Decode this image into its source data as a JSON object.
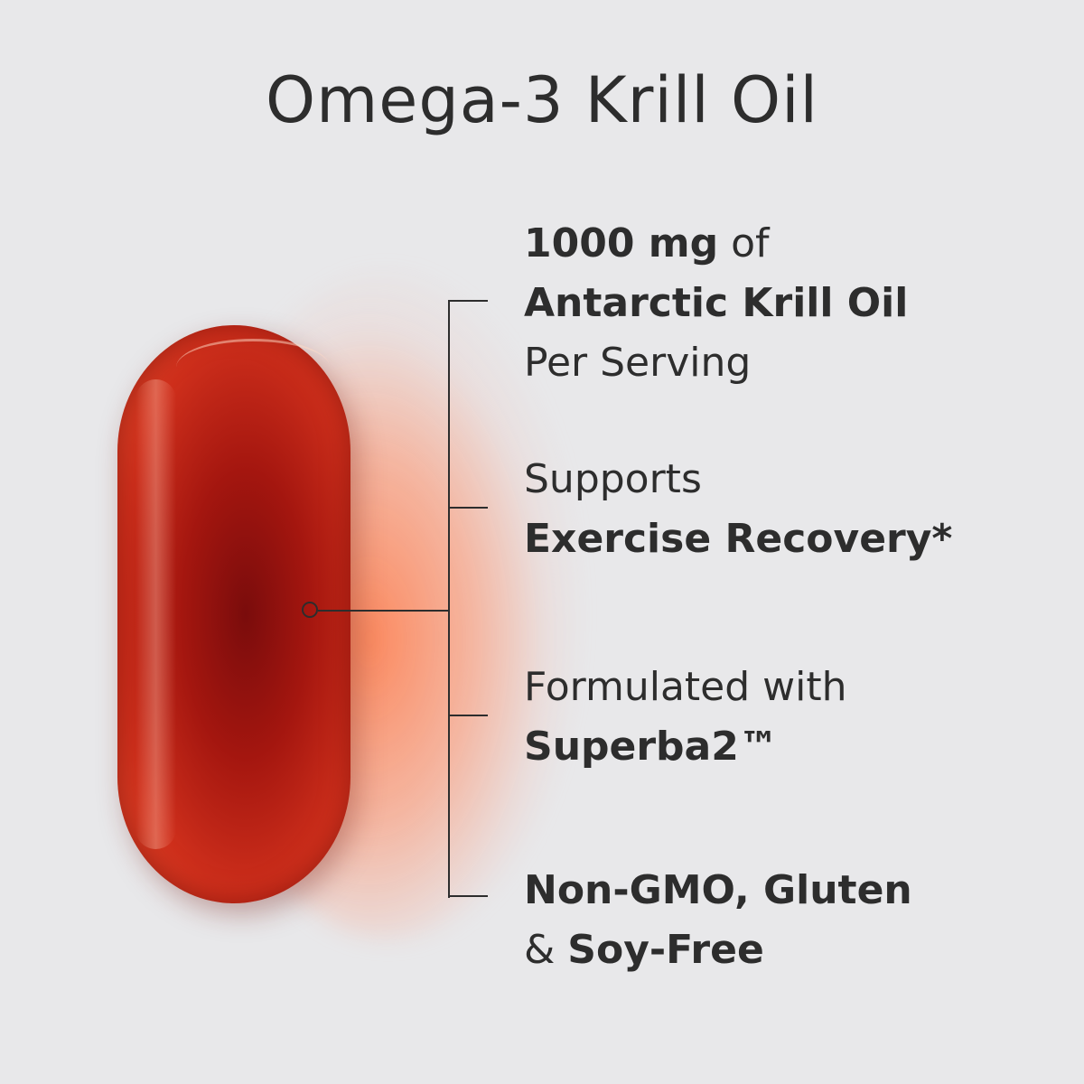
{
  "title": "Omega-3 Krill Oil",
  "features": [
    {
      "lines": [
        [
          {
            "text": "1000 mg",
            "bold": true
          },
          {
            "text": " of",
            "bold": false
          }
        ],
        [
          {
            "text": "Antarctic Krill Oil",
            "bold": true
          }
        ],
        [
          {
            "text": "Per Serving",
            "bold": false
          }
        ]
      ]
    },
    {
      "lines": [
        [
          {
            "text": "Supports",
            "bold": false
          }
        ],
        [
          {
            "text": "Exercise Recovery*",
            "bold": true
          }
        ]
      ]
    },
    {
      "lines": [
        [
          {
            "text": "Formulated with",
            "bold": false
          }
        ],
        [
          {
            "text": "Superba2™",
            "bold": true
          }
        ]
      ]
    },
    {
      "lines": [
        [
          {
            "text": "Non-GMO, Gluten",
            "bold": true
          }
        ],
        [
          {
            "text": "& ",
            "bold": false
          },
          {
            "text": "Soy-Free",
            "bold": true
          }
        ]
      ]
    }
  ],
  "colors": {
    "background": "#e8e8ea",
    "text": "#2d2d2d",
    "capsule": "#a4160f",
    "glow": "#ff7846"
  }
}
